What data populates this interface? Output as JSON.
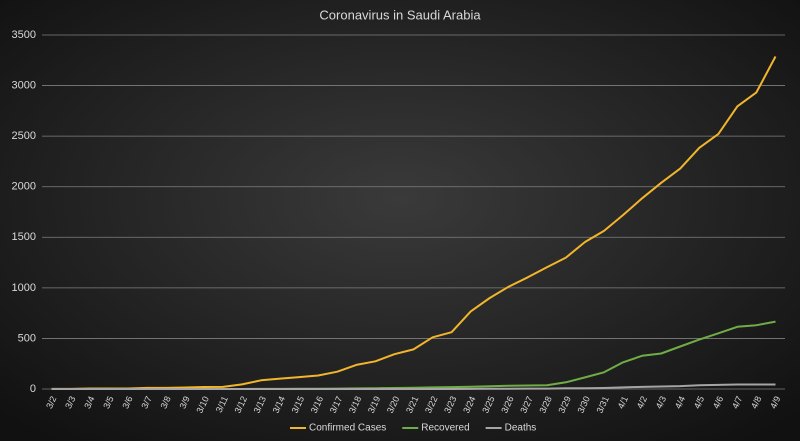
{
  "chart_data": {
    "type": "line",
    "title": "Coronavirus in Saudi Arabia",
    "categories": [
      "3/2",
      "3/3",
      "3/4",
      "3/5",
      "3/6",
      "3/7",
      "3/8",
      "3/9",
      "3/10",
      "3/11",
      "3/12",
      "3/13",
      "3/14",
      "3/15",
      "3/16",
      "3/17",
      "3/18",
      "3/19",
      "3/20",
      "3/21",
      "3/22",
      "3/23",
      "3/24",
      "3/25",
      "3/26",
      "3/27",
      "3/28",
      "3/29",
      "3/30",
      "3/31",
      "4/1",
      "4/2",
      "4/3",
      "4/4",
      "4/5",
      "4/6",
      "4/7",
      "4/8",
      "4/9"
    ],
    "series": [
      {
        "name": "Confirmed Cases",
        "color": "#f2b52b",
        "values": [
          1,
          1,
          5,
          5,
          5,
          11,
          11,
          15,
          20,
          21,
          45,
          86,
          103,
          118,
          133,
          171,
          238,
          274,
          344,
          392,
          511,
          562,
          767,
          900,
          1012,
          1104,
          1203,
          1299,
          1453,
          1563,
          1720,
          1885,
          2039,
          2179,
          2385,
          2520,
          2795,
          2932,
          3287
        ]
      },
      {
        "name": "Recovered",
        "color": "#70ad47",
        "values": [
          0,
          0,
          0,
          0,
          0,
          0,
          0,
          0,
          0,
          0,
          0,
          1,
          1,
          2,
          3,
          4,
          6,
          8,
          10,
          12,
          16,
          19,
          22,
          28,
          33,
          35,
          37,
          66,
          115,
          165,
          264,
          328,
          351,
          420,
          488,
          551,
          615,
          631,
          666
        ]
      },
      {
        "name": "Deaths",
        "color": "#a5a5a5",
        "values": [
          0,
          0,
          0,
          0,
          0,
          0,
          0,
          0,
          0,
          0,
          0,
          0,
          0,
          0,
          0,
          0,
          0,
          0,
          0,
          0,
          0,
          0,
          1,
          3,
          3,
          4,
          4,
          8,
          8,
          10,
          16,
          21,
          25,
          29,
          38,
          41,
          44,
          44,
          44
        ]
      }
    ],
    "ylim": [
      0,
      3500
    ],
    "yticks": [
      0,
      500,
      1000,
      1500,
      2000,
      2500,
      3000,
      3500
    ],
    "grid": true,
    "legend": "bottom"
  }
}
